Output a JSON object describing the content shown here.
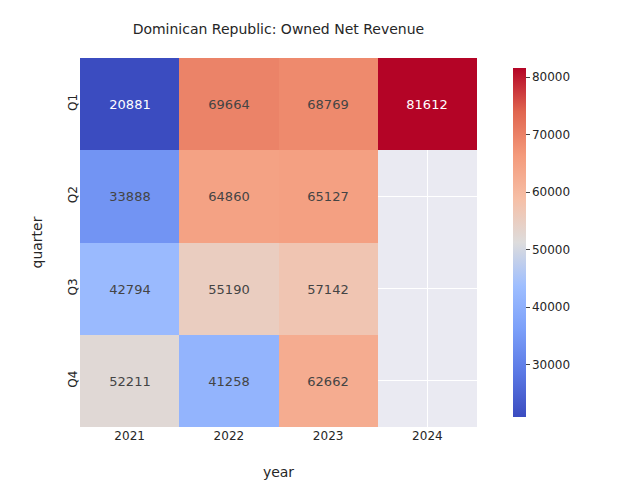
{
  "chart_data": {
    "type": "heatmap",
    "title": "Dominican Republic: Owned Net Revenue",
    "x_label": "year",
    "y_label": "quarter",
    "x": [
      "2021",
      "2022",
      "2023",
      "2024"
    ],
    "y": [
      "Q1",
      "Q2",
      "Q3",
      "Q4"
    ],
    "cells": [
      [
        20881,
        69664,
        68769,
        81612
      ],
      [
        33888,
        64860,
        65127,
        null
      ],
      [
        42794,
        55190,
        57142,
        null
      ],
      [
        52211,
        41258,
        62662,
        null
      ]
    ],
    "color": "coolwarm",
    "colorbar_range": [
      20881,
      81612
    ],
    "colorbar_ticks": [
      30000,
      40000,
      50000,
      60000,
      70000,
      80000
    ],
    "data_labels": true,
    "grid": true
  }
}
